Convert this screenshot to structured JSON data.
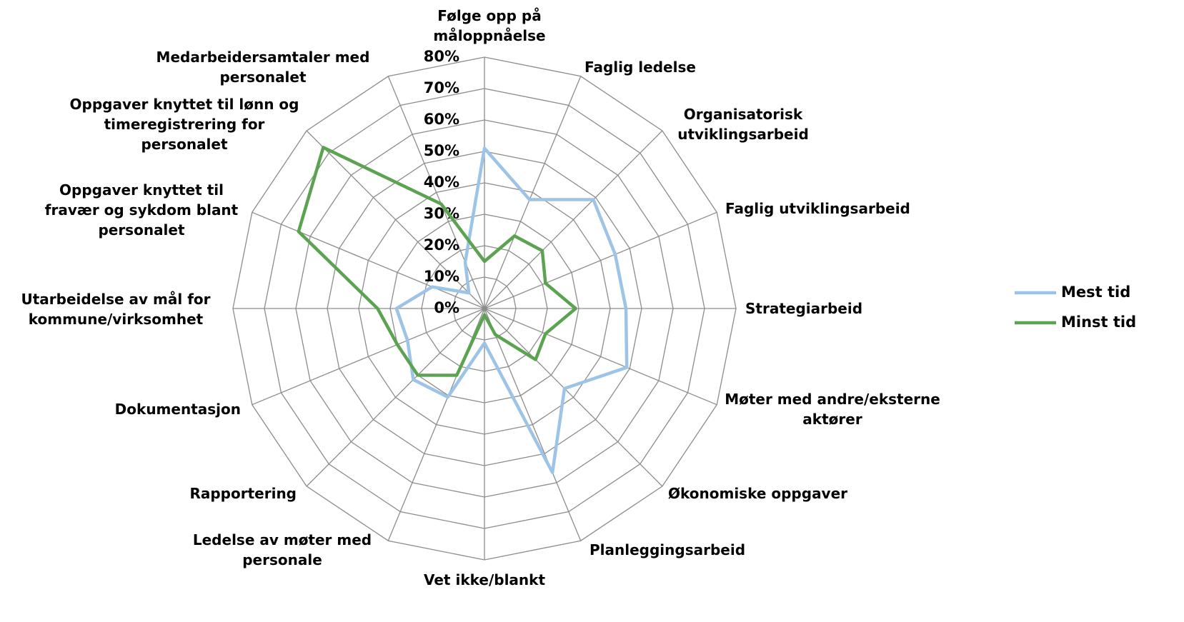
{
  "chart_data": {
    "type": "radar",
    "categories": [
      "Følge opp på måloppnåelse",
      "Faglig ledelse",
      "Organisatorisk utviklingsarbeid",
      "Faglig utviklingsarbeid",
      "Strategiarbeid",
      "Møter med andre/eksterne aktører",
      "Økonomiske oppgaver",
      "Planleggingsarbeid",
      "Vet ikke/blankt",
      "Ledelse av møter med personale",
      "Rapportering",
      "Dokumentasjon",
      "Utarbeidelse av mål for kommune/virksomhet",
      "Oppgaver knyttet til fravær og sykdom blant personalet",
      "Oppgaver knyttet til lønn og timeregistrering for personalet",
      "Medarbeidersamtaler med personalet"
    ],
    "series": [
      {
        "name": "Mest tid",
        "color": "#9dc3e6",
        "values": [
          51,
          37.5,
          49,
          45,
          45,
          49,
          36,
          56.5,
          11,
          30.5,
          32,
          26.5,
          28,
          18,
          7,
          16
        ]
      },
      {
        "name": "Minst tid",
        "color": "#5ba350",
        "values": [
          15,
          25,
          26,
          21,
          29,
          21,
          23,
          9,
          2,
          23,
          30,
          30,
          34,
          64,
          72.5,
          36
        ]
      }
    ],
    "ylim": [
      0,
      80
    ],
    "yticks": [
      {
        "value": 0,
        "label": "0%"
      },
      {
        "value": 10,
        "label": "10%"
      },
      {
        "value": 20,
        "label": "20%"
      },
      {
        "value": 30,
        "label": "30%"
      },
      {
        "value": 40,
        "label": "40%"
      },
      {
        "value": 50,
        "label": "50%"
      },
      {
        "value": 60,
        "label": "60%"
      },
      {
        "value": 70,
        "label": "70%"
      },
      {
        "value": 80,
        "label": "80%"
      }
    ],
    "grid": true,
    "legend": "right"
  }
}
